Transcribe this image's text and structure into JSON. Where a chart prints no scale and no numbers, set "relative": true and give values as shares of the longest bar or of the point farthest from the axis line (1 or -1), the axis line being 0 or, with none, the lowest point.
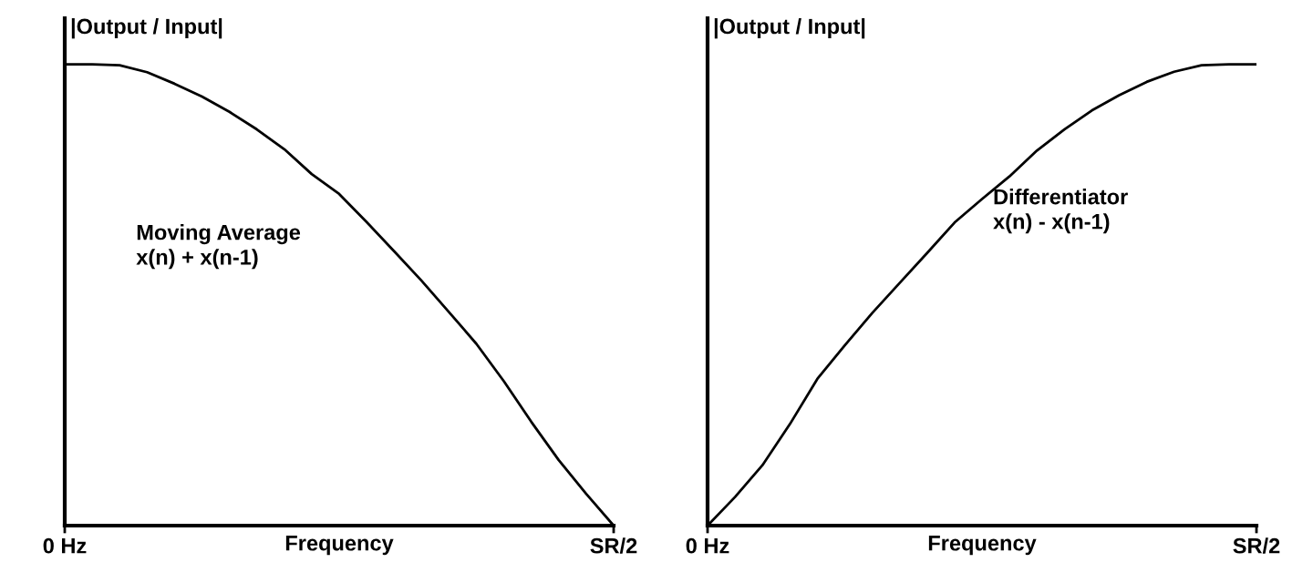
{
  "chart_data": [
    {
      "type": "line",
      "relative": true,
      "ylabel": "|Output / Input|",
      "xlabel": "Frequency",
      "grid": false,
      "legend": false,
      "tick_labels": "x",
      "annotations": [
        "Moving Average\nx(n) + x(n-1)"
      ],
      "categories": [
        "0 Hz",
        null,
        null,
        null,
        null,
        null,
        null,
        null,
        null,
        null,
        null,
        null,
        null,
        null,
        null,
        null,
        null,
        null,
        null,
        null,
        "SR/2"
      ],
      "series": [
        {
          "color": "#000000",
          "values": [
            1,
            1,
            0.998,
            0.983,
            0.958,
            0.93,
            0.897,
            0.859,
            0.816,
            0.762,
            0.719,
            0.658,
            0.595,
            0.531,
            0.463,
            0.394,
            0.313,
            0.225,
            0.142,
            0.069,
            0
          ]
        }
      ]
    },
    {
      "type": "line",
      "relative": true,
      "ylabel": "|Output / Input|",
      "xlabel": "Frequency",
      "grid": false,
      "legend": false,
      "tick_labels": "x",
      "annotations": [
        "Differentiator\nx(n) - x(n-1)"
      ],
      "categories": [
        "0 Hz",
        null,
        null,
        null,
        null,
        null,
        null,
        null,
        null,
        null,
        null,
        null,
        null,
        null,
        null,
        null,
        null,
        null,
        null,
        null,
        "SR/2"
      ],
      "series": [
        {
          "color": "#000000",
          "values": [
            0,
            0.062,
            0.131,
            0.22,
            0.318,
            0.391,
            0.461,
            0.526,
            0.591,
            0.657,
            0.708,
            0.757,
            0.813,
            0.859,
            0.9,
            0.933,
            0.962,
            0.984,
            0.998,
            1,
            1
          ]
        }
      ]
    }
  ]
}
